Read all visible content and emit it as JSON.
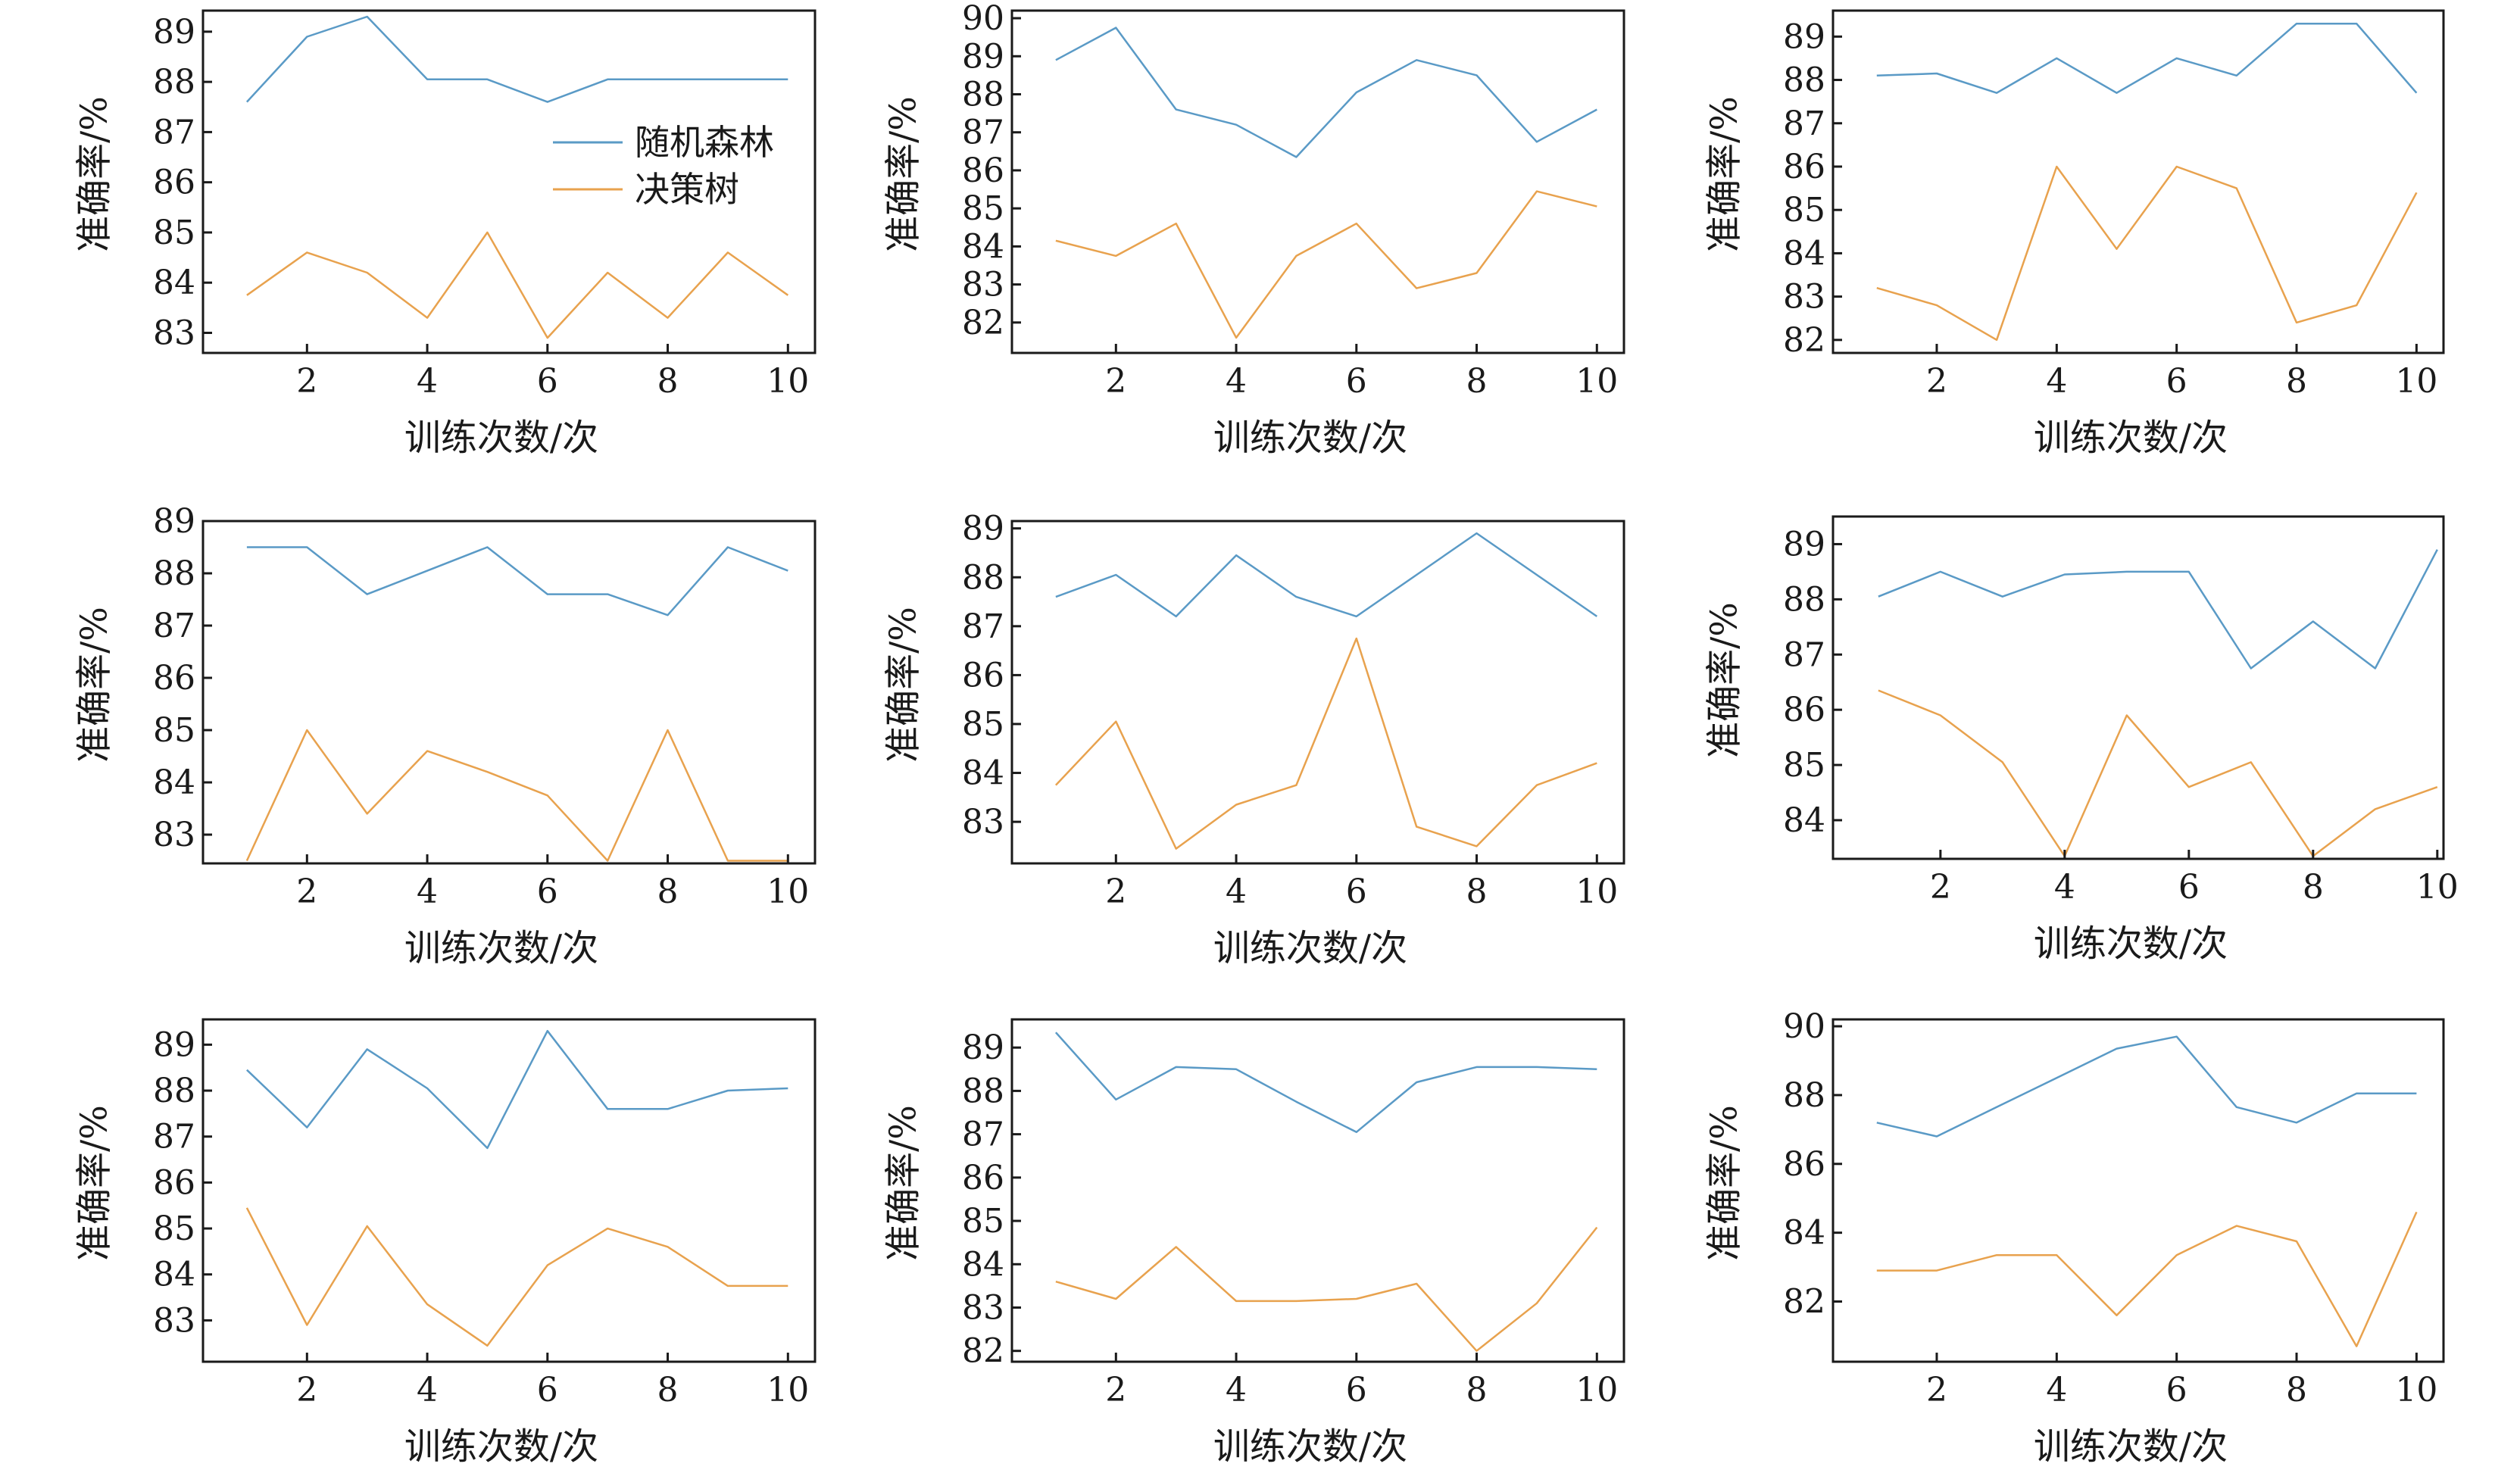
{
  "colors": {
    "rf": "#5a9ac6",
    "dt": "#e8a24e"
  },
  "chart_data": [
    {
      "type": "line",
      "x": [
        1,
        2,
        3,
        4,
        5,
        6,
        7,
        8,
        9,
        10
      ],
      "xticks": [
        2,
        4,
        6,
        8,
        10
      ],
      "xlim": [
        0.27,
        10.45
      ],
      "ylim": [
        82.6,
        89.42
      ],
      "yticks": [
        83,
        84,
        85,
        86,
        87,
        88,
        89
      ],
      "xlabel": "训练次数/次",
      "ylabel": "准确率/%",
      "legend": {
        "placement": "center-right",
        "entries": [
          "随机森林",
          "决策树"
        ]
      },
      "series": [
        {
          "name": "随机森林",
          "values": [
            87.6,
            88.9,
            89.3,
            88.05,
            88.05,
            87.6,
            88.05,
            88.05,
            88.05,
            88.05
          ]
        },
        {
          "name": "决策树",
          "values": [
            83.75,
            84.6,
            84.2,
            83.3,
            85.0,
            82.9,
            84.2,
            83.3,
            84.6,
            83.75
          ]
        }
      ]
    },
    {
      "type": "line",
      "x": [
        1,
        2,
        3,
        4,
        5,
        6,
        7,
        8,
        9,
        10
      ],
      "xticks": [
        2,
        4,
        6,
        8,
        10
      ],
      "xlim": [
        0.27,
        10.45
      ],
      "ylim": [
        81.2,
        90.2
      ],
      "yticks": [
        82,
        83,
        84,
        85,
        86,
        87,
        88,
        89,
        90
      ],
      "xlabel": "训练次数/次",
      "ylabel": "准确率/%",
      "series": [
        {
          "name": "随机森林",
          "values": [
            88.9,
            89.75,
            87.6,
            87.2,
            86.35,
            88.05,
            88.9,
            88.5,
            86.75,
            87.6
          ]
        },
        {
          "name": "决策树",
          "values": [
            84.15,
            83.75,
            84.6,
            81.6,
            83.75,
            84.6,
            82.9,
            83.3,
            85.45,
            85.05
          ]
        }
      ]
    },
    {
      "type": "line",
      "x": [
        1,
        2,
        3,
        4,
        5,
        6,
        7,
        8,
        9,
        10
      ],
      "xticks": [
        2,
        4,
        6,
        8,
        10
      ],
      "xlim": [
        0.27,
        10.45
      ],
      "ylim": [
        81.7,
        89.6
      ],
      "yticks": [
        82,
        83,
        84,
        85,
        86,
        87,
        88,
        89
      ],
      "xlabel": "训练次数/次",
      "ylabel": "准确率/%",
      "series": [
        {
          "name": "随机森林",
          "values": [
            88.1,
            88.15,
            87.7,
            88.5,
            87.7,
            88.5,
            88.1,
            89.3,
            89.3,
            87.7
          ]
        },
        {
          "name": "决策树",
          "values": [
            83.2,
            82.8,
            82.0,
            86.0,
            84.1,
            86.0,
            85.5,
            82.4,
            82.8,
            85.4
          ]
        }
      ]
    },
    {
      "type": "line",
      "x": [
        1,
        2,
        3,
        4,
        5,
        6,
        7,
        8,
        9,
        10
      ],
      "xticks": [
        2,
        4,
        6,
        8,
        10
      ],
      "xlim": [
        0.27,
        10.45
      ],
      "ylim": [
        82.45,
        89.0
      ],
      "yticks": [
        83,
        84,
        85,
        86,
        87,
        88,
        89
      ],
      "xlabel": "训练次数/次",
      "ylabel": "准确率/%",
      "series": [
        {
          "name": "随机森林",
          "values": [
            88.5,
            88.5,
            87.6,
            88.05,
            88.5,
            87.6,
            87.6,
            87.2,
            88.5,
            88.05
          ]
        },
        {
          "name": "决策树",
          "values": [
            82.5,
            85.0,
            83.4,
            84.6,
            84.2,
            83.75,
            82.5,
            85.0,
            82.5,
            82.5
          ]
        }
      ]
    },
    {
      "type": "line",
      "x": [
        1,
        2,
        3,
        4,
        5,
        6,
        7,
        8,
        9,
        10
      ],
      "xticks": [
        2,
        4,
        6,
        8,
        10
      ],
      "xlim": [
        0.27,
        10.45
      ],
      "ylim": [
        82.15,
        89.15
      ],
      "yticks": [
        83,
        84,
        85,
        86,
        87,
        88,
        89
      ],
      "xlabel": "训练次数/次",
      "ylabel": "准确率/%",
      "series": [
        {
          "name": "随机森林",
          "values": [
            87.6,
            88.05,
            87.2,
            88.45,
            87.6,
            87.2,
            88.05,
            88.9,
            88.05,
            87.2
          ]
        },
        {
          "name": "决策树",
          "values": [
            83.75,
            85.05,
            82.45,
            83.35,
            83.75,
            86.75,
            82.9,
            82.5,
            83.75,
            84.2
          ]
        }
      ]
    },
    {
      "type": "line",
      "x": [
        1,
        2,
        3,
        4,
        5,
        6,
        7,
        8,
        9,
        10
      ],
      "xticks": [
        2,
        4,
        6,
        8,
        10
      ],
      "xlim": [
        0.27,
        10.1
      ],
      "ylim": [
        83.3,
        89.5
      ],
      "yticks": [
        84,
        85,
        86,
        87,
        88,
        89
      ],
      "xlabel": "训练次数/次",
      "ylabel": "准确率/%",
      "series": [
        {
          "name": "随机森林",
          "values": [
            88.05,
            88.5,
            88.05,
            88.45,
            88.5,
            88.5,
            86.75,
            87.6,
            86.75,
            88.9
          ]
        },
        {
          "name": "决策树",
          "values": [
            86.35,
            85.9,
            85.05,
            83.35,
            85.9,
            84.6,
            85.05,
            83.35,
            84.2,
            84.6
          ]
        }
      ]
    },
    {
      "type": "line",
      "x": [
        1,
        2,
        3,
        4,
        5,
        6,
        7,
        8,
        9,
        10
      ],
      "xticks": [
        2,
        4,
        6,
        8,
        10
      ],
      "xlim": [
        0.27,
        10.45
      ],
      "ylim": [
        82.1,
        89.55
      ],
      "yticks": [
        83,
        84,
        85,
        86,
        87,
        88,
        89
      ],
      "xlabel": "训练次数/次",
      "ylabel": "准确率/%",
      "series": [
        {
          "name": "随机森林",
          "values": [
            88.45,
            87.2,
            88.9,
            88.05,
            86.75,
            89.3,
            87.6,
            87.6,
            88.0,
            88.05
          ]
        },
        {
          "name": "决策树",
          "values": [
            85.45,
            82.9,
            85.05,
            83.35,
            82.45,
            84.2,
            85.0,
            84.6,
            83.75,
            83.75
          ]
        }
      ]
    },
    {
      "type": "line",
      "x": [
        1,
        2,
        3,
        4,
        5,
        6,
        7,
        8,
        9,
        10
      ],
      "xticks": [
        2,
        4,
        6,
        8,
        10
      ],
      "xlim": [
        0.27,
        10.45
      ],
      "ylim": [
        81.75,
        89.65
      ],
      "yticks": [
        82,
        83,
        84,
        85,
        86,
        87,
        88,
        89
      ],
      "xlabel": "训练次数/次",
      "ylabel": "准确率/%",
      "series": [
        {
          "name": "随机森林",
          "values": [
            89.35,
            87.8,
            88.55,
            88.5,
            87.75,
            87.05,
            88.2,
            88.55,
            88.55,
            88.5
          ]
        },
        {
          "name": "决策树",
          "values": [
            83.6,
            83.2,
            84.4,
            83.15,
            83.15,
            83.2,
            83.55,
            82.0,
            83.1,
            84.85
          ]
        }
      ]
    },
    {
      "type": "line",
      "x": [
        1,
        2,
        3,
        4,
        5,
        6,
        7,
        8,
        9,
        10
      ],
      "xticks": [
        2,
        4,
        6,
        8,
        10
      ],
      "xlim": [
        0.27,
        10.45
      ],
      "ylim": [
        80.25,
        90.2
      ],
      "yticks": [
        82,
        84,
        86,
        88,
        90
      ],
      "xlabel": "训练次数/次",
      "ylabel": "准确率/%",
      "series": [
        {
          "name": "随机森林",
          "values": [
            87.2,
            86.8,
            87.65,
            88.5,
            89.35,
            89.7,
            87.65,
            87.2,
            88.05,
            88.05
          ]
        },
        {
          "name": "决策树",
          "values": [
            82.9,
            82.9,
            83.35,
            83.35,
            81.6,
            83.35,
            84.2,
            83.75,
            80.7,
            84.6
          ]
        }
      ]
    }
  ]
}
